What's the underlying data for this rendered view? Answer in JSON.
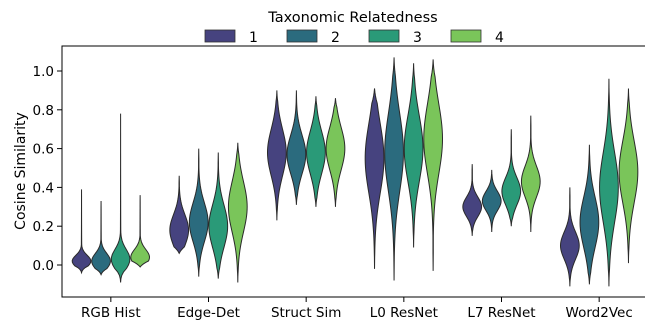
{
  "chart_data": {
    "type": "violin",
    "legend": {
      "title": "Taxonomic Relatedness",
      "placement": "top-center",
      "entries": [
        "1",
        "2",
        "3",
        "4"
      ]
    },
    "xlabel": "",
    "ylabel": "Cosine Similarity",
    "ylim": [
      -0.16,
      1.13
    ],
    "yticks": [
      "0.0",
      "0.2",
      "0.4",
      "0.6",
      "0.8",
      "1.0"
    ],
    "ytick_values": [
      0.0,
      0.2,
      0.4,
      0.6,
      0.8,
      1.0
    ],
    "grid": false,
    "categories": [
      "RGB Hist",
      "Edge-Det",
      "Struct Sim",
      "L0 ResNet",
      "L7 ResNet",
      "Word2Vec"
    ],
    "colors": [
      "#46437f",
      "#2b6b7e",
      "#2a9a78",
      "#7ac55a"
    ],
    "series": [
      {
        "name": "1",
        "violins": [
          {
            "min": -0.04,
            "max": 0.39,
            "mode": 0.02,
            "spread": 0.03
          },
          {
            "min": 0.06,
            "max": 0.46,
            "mode": 0.18,
            "spread": 0.08
          },
          {
            "min": 0.23,
            "max": 0.9,
            "mode": 0.58,
            "spread": 0.12
          },
          {
            "min": -0.02,
            "max": 0.91,
            "mode": 0.55,
            "spread": 0.18
          },
          {
            "min": 0.15,
            "max": 0.52,
            "mode": 0.3,
            "spread": 0.05
          },
          {
            "min": -0.11,
            "max": 0.4,
            "mode": 0.1,
            "spread": 0.07
          }
        ]
      },
      {
        "name": "2",
        "violins": [
          {
            "min": -0.05,
            "max": 0.33,
            "mode": 0.02,
            "spread": 0.04
          },
          {
            "min": -0.06,
            "max": 0.6,
            "mode": 0.22,
            "spread": 0.1
          },
          {
            "min": 0.31,
            "max": 0.9,
            "mode": 0.57,
            "spread": 0.1
          },
          {
            "min": -0.08,
            "max": 1.07,
            "mode": 0.58,
            "spread": 0.2
          },
          {
            "min": 0.17,
            "max": 0.49,
            "mode": 0.33,
            "spread": 0.05
          },
          {
            "min": -0.1,
            "max": 0.62,
            "mode": 0.22,
            "spread": 0.13
          }
        ]
      },
      {
        "name": "3",
        "violins": [
          {
            "min": -0.09,
            "max": 0.78,
            "mode": 0.03,
            "spread": 0.05
          },
          {
            "min": -0.07,
            "max": 0.58,
            "mode": 0.2,
            "spread": 0.11
          },
          {
            "min": 0.3,
            "max": 0.87,
            "mode": 0.58,
            "spread": 0.11
          },
          {
            "min": 0.09,
            "max": 1.04,
            "mode": 0.6,
            "spread": 0.17
          },
          {
            "min": 0.2,
            "max": 0.7,
            "mode": 0.38,
            "spread": 0.07
          },
          {
            "min": -0.11,
            "max": 0.96,
            "mode": 0.4,
            "spread": 0.18
          }
        ]
      },
      {
        "name": "4",
        "violins": [
          {
            "min": -0.01,
            "max": 0.36,
            "mode": 0.04,
            "spread": 0.04
          },
          {
            "min": -0.09,
            "max": 0.63,
            "mode": 0.3,
            "spread": 0.13
          },
          {
            "min": 0.3,
            "max": 0.86,
            "mode": 0.6,
            "spread": 0.11
          },
          {
            "min": -0.03,
            "max": 1.06,
            "mode": 0.65,
            "spread": 0.18
          },
          {
            "min": 0.17,
            "max": 0.77,
            "mode": 0.43,
            "spread": 0.08
          },
          {
            "min": 0.01,
            "max": 0.91,
            "mode": 0.48,
            "spread": 0.16
          }
        ]
      }
    ]
  }
}
